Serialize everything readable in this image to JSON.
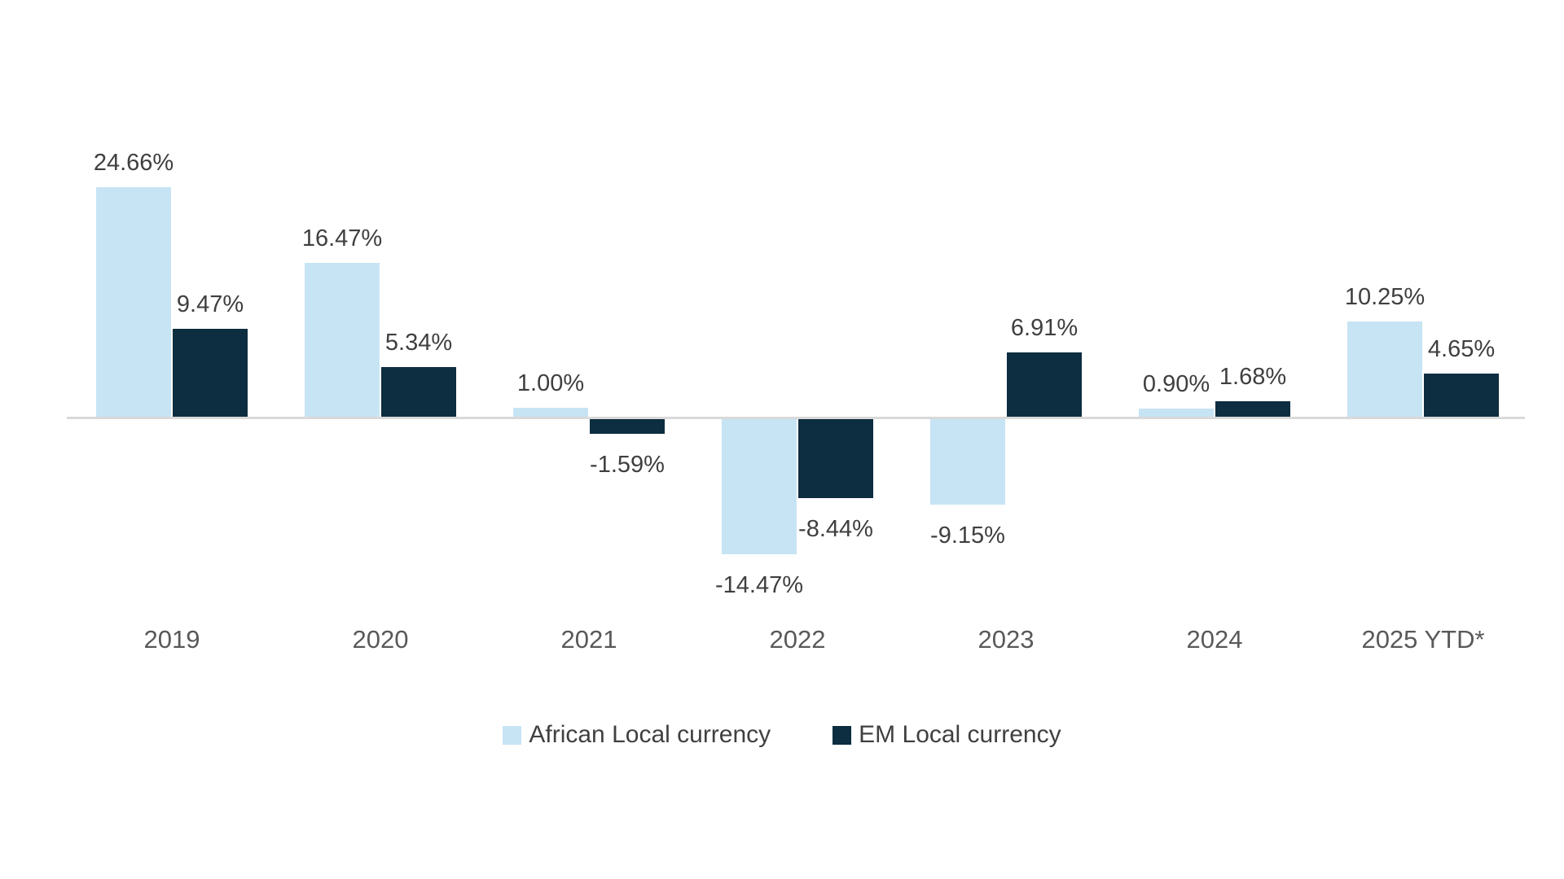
{
  "chart_data": {
    "type": "bar",
    "title": "",
    "xlabel": "",
    "ylabel": "",
    "categories": [
      "2019",
      "2020",
      "2021",
      "2022",
      "2023",
      "2024",
      "2025 YTD*"
    ],
    "series": [
      {
        "name": "African Local currency",
        "color": "#C7E4F4",
        "values": [
          24.66,
          16.47,
          1.0,
          -14.47,
          -9.15,
          0.9,
          10.25
        ],
        "labels": [
          "24.66%",
          "16.47%",
          "1.00%",
          "-14.47%",
          "-9.15%",
          "0.90%",
          "10.25%"
        ]
      },
      {
        "name": "EM Local currency",
        "color": "#0D2D40",
        "values": [
          9.47,
          5.34,
          -1.59,
          -8.44,
          6.91,
          1.68,
          4.65
        ],
        "labels": [
          "9.47%",
          "5.34%",
          "-1.59%",
          "-8.44%",
          "6.91%",
          "1.68%",
          "4.65%"
        ]
      }
    ],
    "ylim": [
      -16,
      26
    ],
    "grid": false,
    "legend_position": "bottom",
    "colors": {
      "background": "#FFFFFF",
      "axis_line": "#D9D9D9",
      "data_label_text": "#3F3F3F",
      "category_label_text": "#595959",
      "legend_text": "#404040"
    }
  }
}
